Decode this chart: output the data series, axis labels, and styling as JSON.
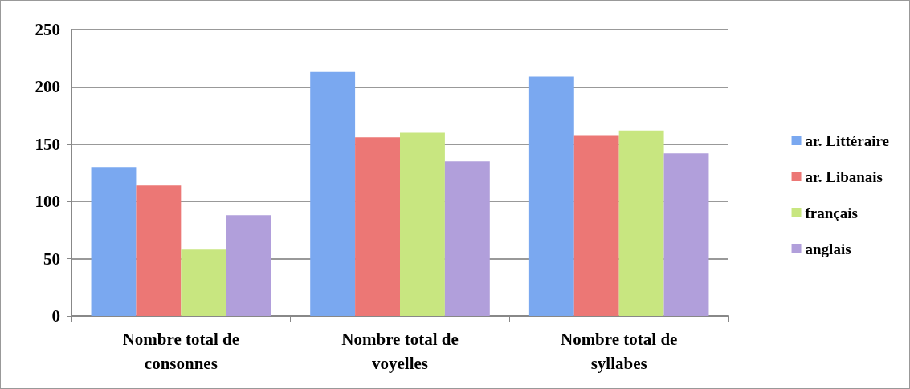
{
  "chart_data": {
    "type": "bar",
    "categories": [
      "Nombre total de consonnes",
      "Nombre total de voyelles",
      "Nombre total de syllabes"
    ],
    "series": [
      {
        "name": "ar. Littéraire",
        "color": "#7aa8f0",
        "values": [
          130,
          213,
          209
        ]
      },
      {
        "name": "ar. Libanais",
        "color": "#ec7775",
        "values": [
          114,
          156,
          158
        ]
      },
      {
        "name": "français",
        "color": "#c8e680",
        "values": [
          58,
          160,
          162
        ]
      },
      {
        "name": "anglais",
        "color": "#b19fdb",
        "values": [
          88,
          135,
          142
        ]
      }
    ],
    "ylim": [
      0,
      250
    ],
    "yticks": [
      0,
      50,
      100,
      150,
      200,
      250
    ],
    "grid": "y",
    "legend": "right"
  }
}
